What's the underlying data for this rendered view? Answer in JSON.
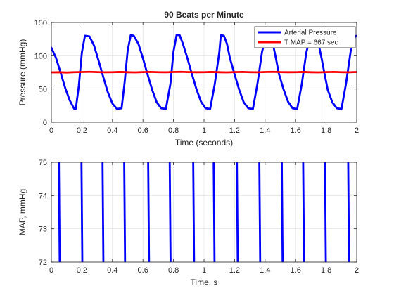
{
  "chart_data": [
    {
      "type": "line",
      "title": "90 Beats per Minute",
      "xlabel": "Time (seconds)",
      "ylabel": "Pressure (mmHg)",
      "xlim": [
        0,
        2
      ],
      "ylim": [
        0,
        150
      ],
      "xticks": [
        "0",
        "0.2",
        "0.4",
        "0.6",
        "0.8",
        "1",
        "1.2",
        "1.4",
        "1.6",
        "1.8",
        "2"
      ],
      "yticks": [
        "0",
        "50",
        "100",
        "150"
      ],
      "grid": true,
      "legend": "top-right",
      "series": [
        {
          "name": "Arterial Pressure",
          "color": "#0000ff",
          "x": [
            0,
            0.03,
            0.06,
            0.09,
            0.12,
            0.15,
            0.16,
            0.18,
            0.2,
            0.22,
            0.25,
            0.28,
            0.31,
            0.34,
            0.37,
            0.4,
            0.43,
            0.46,
            0.48,
            0.5,
            0.52,
            0.54,
            0.57,
            0.6,
            0.63,
            0.66,
            0.69,
            0.72,
            0.75,
            0.78,
            0.8,
            0.82,
            0.84,
            0.86,
            0.89,
            0.92,
            0.95,
            0.98,
            1.01,
            1.04,
            1.07,
            1.1,
            1.11,
            1.13,
            1.15,
            1.17,
            1.2,
            1.23,
            1.26,
            1.29,
            1.32,
            1.35,
            1.38,
            1.41,
            1.43,
            1.45,
            1.47,
            1.49,
            1.52,
            1.55,
            1.58,
            1.61,
            1.64,
            1.67,
            1.7,
            1.73,
            1.75,
            1.77,
            1.79,
            1.81,
            1.84,
            1.87,
            1.9,
            1.93,
            1.96,
            1.99,
            2.0
          ],
          "y": [
            112,
            97,
            75,
            52,
            33,
            20,
            20,
            55,
            105,
            130,
            129,
            115,
            92,
            68,
            45,
            28,
            20,
            21,
            60,
            108,
            131,
            130,
            118,
            96,
            72,
            49,
            30,
            21,
            20,
            58,
            106,
            131,
            131,
            119,
            97,
            73,
            50,
            31,
            21,
            20,
            57,
            105,
            131,
            130,
            118,
            96,
            72,
            49,
            30,
            21,
            20,
            58,
            106,
            131,
            131,
            119,
            97,
            73,
            50,
            31,
            21,
            20,
            57,
            105,
            131,
            130,
            118,
            96,
            72,
            49,
            30,
            21,
            20,
            58,
            106,
            129,
            130
          ]
        },
        {
          "name": "T MAP = 667 sec",
          "color": "#ff0000",
          "x": [
            0,
            0.05,
            0.1,
            0.15,
            0.2,
            0.25,
            0.3,
            0.35,
            0.4,
            0.45,
            0.5,
            0.55,
            0.6,
            0.65,
            0.7,
            0.75,
            0.8,
            0.85,
            0.9,
            0.95,
            1.0,
            1.05,
            1.1,
            1.15,
            1.2,
            1.25,
            1.3,
            1.35,
            1.4,
            1.45,
            1.5,
            1.55,
            1.6,
            1.65,
            1.7,
            1.75,
            1.8,
            1.85,
            1.9,
            1.95,
            2.0
          ],
          "y": [
            75,
            75.2,
            74.8,
            75.3,
            75.5,
            75.8,
            75.4,
            75.1,
            75.3,
            75.6,
            75.2,
            75.0,
            75.4,
            75.7,
            75.3,
            75.1,
            75.5,
            75.8,
            75.4,
            75.2,
            75.3,
            75.6,
            75.2,
            75.0,
            75.4,
            75.7,
            75.3,
            75.1,
            75.5,
            75.8,
            75.4,
            75.2,
            75.3,
            75.6,
            75.2,
            75.0,
            75.4,
            75.7,
            75.3,
            75.1,
            75.5
          ]
        }
      ]
    },
    {
      "type": "line",
      "title": "",
      "xlabel": "Time, s",
      "ylabel": "MAP, mmHg",
      "xlim": [
        0,
        2
      ],
      "ylim": [
        72,
        75
      ],
      "xticks": [
        "0",
        "0.2",
        "0.4",
        "0.6",
        "0.8",
        "1",
        "1.2",
        "1.4",
        "1.6",
        "1.8",
        "2"
      ],
      "yticks": [
        "72",
        "73",
        "74",
        "75"
      ],
      "grid": true,
      "series": [
        {
          "color": "#0000ff",
          "crossings_x": [
            0.052,
            0.2,
            0.338,
            0.48,
            0.637,
            0.778,
            0.932,
            1.066,
            1.218,
            1.365,
            1.512,
            1.652,
            1.795,
            1.947
          ]
        }
      ]
    }
  ]
}
